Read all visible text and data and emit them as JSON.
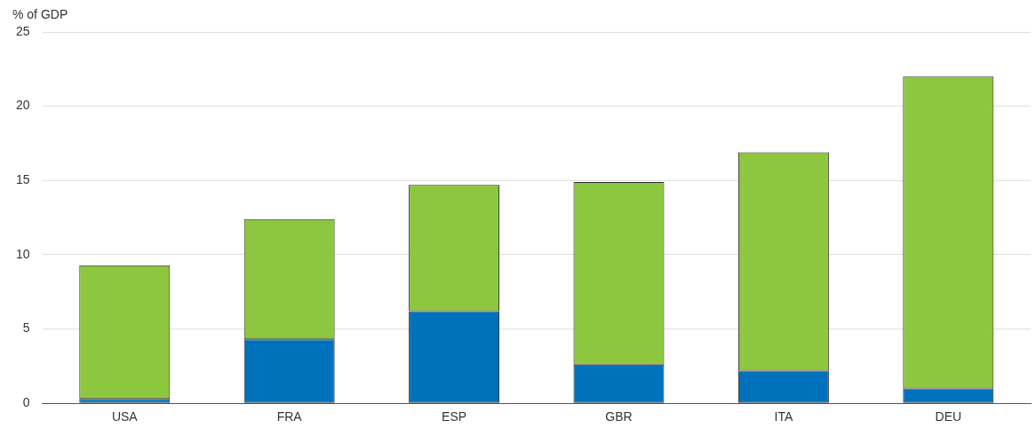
{
  "chart_data": {
    "type": "bar",
    "ylabel": "% of GDP",
    "categories": [
      "USA",
      "FRA",
      "ESP",
      "GBR",
      "ITA",
      "DEU"
    ],
    "stacked": true,
    "series": [
      {
        "color": "#0072bc",
        "values": [
          0.3,
          4.3,
          6.2,
          2.6,
          2.2,
          1.0
        ]
      },
      {
        "color": "#8dc63f",
        "values": [
          9.0,
          8.1,
          8.5,
          12.3,
          14.7,
          21.0
        ]
      }
    ],
    "ylim": [
      0,
      25
    ],
    "yticks": [
      0,
      5,
      10,
      15,
      20,
      25
    ],
    "grid": "y",
    "legend": false
  }
}
